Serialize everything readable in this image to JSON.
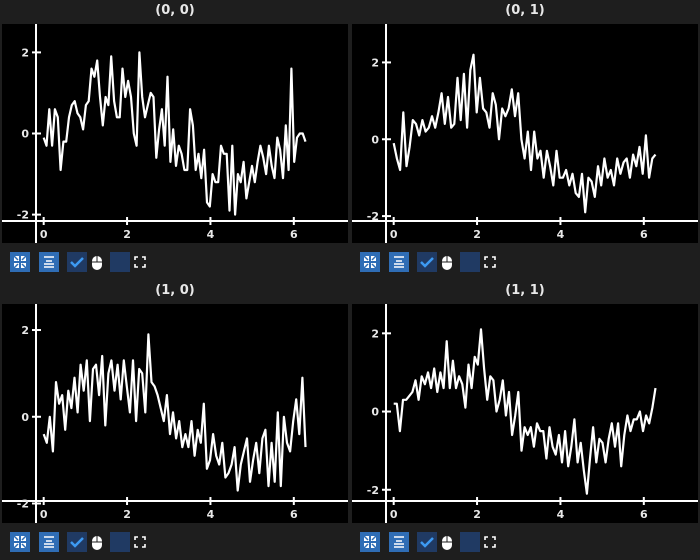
{
  "window": {
    "background": "#1e1e1e",
    "plot_background": "#000000",
    "line_color": "#ffffff",
    "button_color": "#2f6db5",
    "toggle_color": "#203a63",
    "check_color": "#3d9af2"
  },
  "toolbar_icons": [
    "fit-view-icon",
    "align-center-icon",
    "checkbox-checked",
    "mouse-icon",
    "checkbox-empty",
    "fullscreen-icon"
  ],
  "chart_data": [
    {
      "type": "line",
      "title": "(0, 0)",
      "xlim": [
        -1.0,
        7.3
      ],
      "ylim": [
        -2.7,
        2.7
      ],
      "xticks": [
        "0",
        "2",
        "4",
        "6"
      ],
      "yticks": [
        "-2",
        "0",
        "2"
      ],
      "x_range": [
        0,
        6.28
      ],
      "values": [
        -0.1,
        -0.3,
        0.6,
        -0.3,
        0.6,
        0.4,
        -0.9,
        -0.2,
        -0.2,
        0.4,
        0.7,
        0.8,
        0.5,
        0.4,
        0.1,
        0.7,
        0.8,
        1.6,
        1.4,
        1.8,
        0.9,
        0.2,
        0.9,
        0.7,
        1.9,
        0.8,
        0.4,
        0.4,
        1.6,
        0.9,
        1.3,
        0.9,
        0.0,
        -0.3,
        2.0,
        0.9,
        0.4,
        0.7,
        1.0,
        0.9,
        -0.6,
        0.1,
        0.6,
        -0.3,
        1.4,
        -0.7,
        0.1,
        -0.8,
        -0.3,
        -0.5,
        -0.9,
        -0.9,
        0.6,
        0.2,
        -0.9,
        -0.5,
        -1.1,
        -0.4,
        -1.7,
        -1.8,
        -1.0,
        -1.2,
        -1.2,
        -0.3,
        -0.5,
        -0.5,
        -1.9,
        -0.3,
        -2.0,
        -1.0,
        -1.2,
        -0.7,
        -1.6,
        -1.2,
        -0.8,
        -1.2,
        -0.7,
        -0.3,
        -0.6,
        -1.0,
        -0.3,
        -0.8,
        -1.1,
        -0.1,
        -0.4,
        -1.1,
        0.2,
        -0.9,
        1.6,
        -0.7,
        -0.1,
        0.0,
        0.0,
        -0.2
      ]
    },
    {
      "type": "line",
      "title": "(0, 1)",
      "xlim": [
        -1.0,
        7.3
      ],
      "ylim": [
        -2.7,
        3.0
      ],
      "xticks": [
        "0",
        "2",
        "4",
        "6"
      ],
      "yticks": [
        "-2",
        "0",
        "2"
      ],
      "x_range": [
        0,
        6.28
      ],
      "values": [
        -0.1,
        -0.5,
        -0.8,
        0.7,
        -0.7,
        -0.2,
        0.5,
        0.4,
        0.1,
        0.5,
        0.2,
        0.3,
        0.6,
        0.3,
        0.7,
        1.2,
        0.4,
        1.1,
        0.3,
        0.4,
        1.6,
        0.5,
        1.7,
        0.3,
        1.8,
        2.2,
        0.7,
        1.6,
        0.8,
        0.7,
        0.3,
        1.2,
        0.9,
        0.0,
        0.8,
        0.6,
        0.8,
        1.3,
        0.6,
        1.2,
        0.0,
        -0.5,
        0.2,
        -0.8,
        0.2,
        -0.5,
        -0.3,
        -1.0,
        -0.3,
        -0.7,
        -1.2,
        -0.3,
        -1.0,
        -1.0,
        -0.8,
        -1.2,
        -0.9,
        -1.4,
        -1.5,
        -0.9,
        -1.9,
        -1.0,
        -1.1,
        -1.5,
        -0.7,
        -1.2,
        -0.5,
        -1.0,
        -0.8,
        -1.2,
        -0.5,
        -0.9,
        -0.6,
        -0.5,
        -1.0,
        -0.4,
        -0.7,
        -0.2,
        -0.9,
        0.1,
        -1.0,
        -0.5,
        -0.4
      ]
    },
    {
      "type": "line",
      "title": "(1, 0)",
      "xlim": [
        -1.0,
        7.3
      ],
      "ylim": [
        -2.45,
        2.6
      ],
      "xticks": [
        "0",
        "2",
        "4",
        "6"
      ],
      "yticks": [
        "-2",
        "0",
        "2"
      ],
      "x_range": [
        0,
        6.28
      ],
      "values": [
        -0.4,
        -0.6,
        0.0,
        -0.8,
        0.8,
        0.3,
        0.5,
        -0.3,
        0.6,
        0.2,
        0.9,
        0.1,
        1.2,
        0.6,
        1.3,
        -0.1,
        1.1,
        1.2,
        0.5,
        1.4,
        -0.2,
        1.0,
        1.3,
        0.6,
        1.2,
        0.4,
        1.3,
        0.7,
        0.1,
        1.3,
        -0.1,
        1.1,
        1.0,
        0.1,
        1.9,
        0.8,
        0.7,
        0.5,
        0.2,
        -0.1,
        0.5,
        -0.4,
        0.1,
        -0.5,
        -0.1,
        -0.7,
        -0.4,
        -0.7,
        -0.1,
        -0.9,
        -0.3,
        -0.6,
        0.3,
        -1.2,
        -1.0,
        -0.4,
        -0.9,
        -1.1,
        -0.6,
        -1.4,
        -1.3,
        -1.1,
        -0.7,
        -1.7,
        -1.1,
        -0.8,
        -0.5,
        -1.5,
        -1.0,
        -0.6,
        -1.3,
        -0.5,
        -0.3,
        -1.6,
        -0.6,
        -1.5,
        0.1,
        -1.6,
        0.0,
        -0.6,
        -0.8,
        -0.1,
        0.4,
        -0.4,
        0.9,
        -0.7
      ]
    },
    {
      "type": "line",
      "title": "(1, 1)",
      "xlim": [
        -1.0,
        7.3
      ],
      "ylim": [
        -2.85,
        2.75
      ],
      "xticks": [
        "0",
        "2",
        "4",
        "6"
      ],
      "yticks": [
        "-2",
        "0",
        "2"
      ],
      "x_range": [
        0,
        6.28
      ],
      "values": [
        0.2,
        0.2,
        -0.5,
        0.3,
        0.3,
        0.4,
        0.5,
        0.8,
        0.3,
        0.9,
        0.7,
        1.0,
        0.6,
        1.1,
        0.5,
        1.0,
        0.6,
        1.8,
        0.6,
        1.3,
        0.6,
        0.9,
        0.7,
        0.1,
        1.2,
        0.6,
        1.4,
        1.2,
        2.1,
        1.1,
        0.3,
        0.9,
        0.8,
        0.0,
        0.3,
        0.8,
        -0.1,
        0.5,
        -0.6,
        -0.1,
        0.5,
        -1.0,
        -0.4,
        -0.6,
        -0.4,
        -0.9,
        -0.3,
        -0.5,
        -0.5,
        -1.2,
        -0.4,
        -0.9,
        -1.1,
        -0.6,
        -1.3,
        -0.5,
        -1.4,
        -0.9,
        -0.2,
        -1.3,
        -0.8,
        -1.5,
        -2.1,
        -1.2,
        -0.4,
        -1.3,
        -0.7,
        -0.8,
        -1.3,
        -0.7,
        -0.3,
        -0.9,
        -0.3,
        -1.4,
        -0.6,
        -0.1,
        -0.5,
        -0.2,
        -0.2,
        0.0,
        -0.5,
        -0.1,
        -0.3,
        0.1,
        0.6
      ]
    }
  ]
}
